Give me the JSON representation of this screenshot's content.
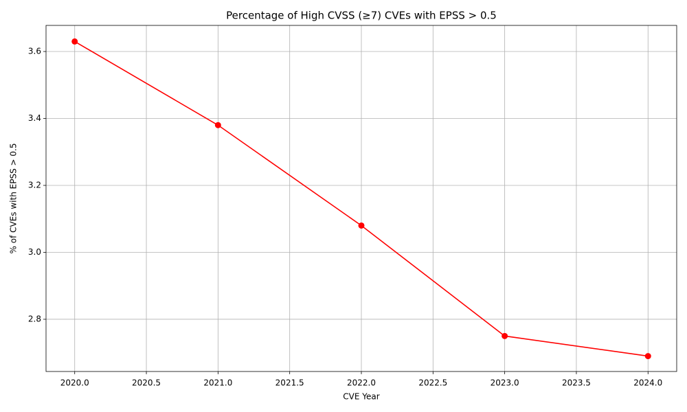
{
  "chart_data": {
    "type": "line",
    "title": "Percentage of High CVSS (≥7) CVEs with EPSS > 0.5",
    "xlabel": "CVE Year",
    "ylabel": "% of CVEs with EPSS > 0.5",
    "x": [
      2020,
      2021,
      2022,
      2023,
      2024
    ],
    "series": [
      {
        "name": "",
        "color": "#ff0000",
        "values": [
          3.63,
          3.38,
          3.08,
          2.75,
          2.69
        ]
      }
    ],
    "xlim": [
      2019.8,
      2024.2
    ],
    "ylim": [
      2.644,
      3.678
    ],
    "xticks": [
      {
        "value": 2020,
        "label": "2020.0"
      },
      2020.5,
      {
        "value": 2021,
        "label": "2021.0"
      },
      2021.5,
      {
        "value": 2022,
        "label": "2022.0"
      },
      2022.5,
      {
        "value": 2023,
        "label": "2023.0"
      },
      2023.5,
      {
        "value": 2024,
        "label": "2024.0"
      }
    ],
    "yticks": [
      2.8,
      {
        "value": 3,
        "label": "3.0"
      },
      3.2,
      3.4,
      3.6
    ],
    "grid": true,
    "marker": "o"
  }
}
